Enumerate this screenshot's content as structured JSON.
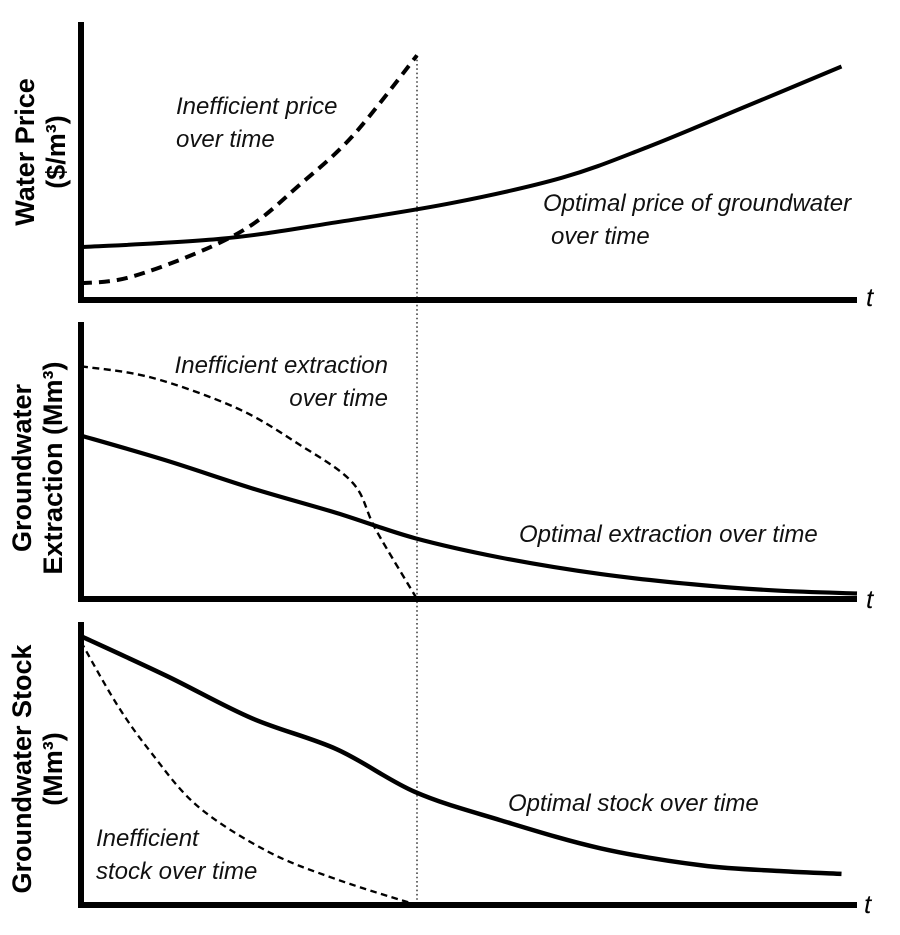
{
  "figure": {
    "background": "#ffffff",
    "ink_color": "#000000",
    "marker_line_color": "#3a3a3a"
  },
  "panels": [
    {
      "ylabel_line1": "Water Price",
      "ylabel_line2": "($/m³)",
      "xlabel": "t",
      "labels": {
        "inefficient_line1": "Inefficient price",
        "inefficient_line2": "over time",
        "optimal_line1": "Optimal price of groundwater",
        "optimal_line2": "over time"
      }
    },
    {
      "ylabel_line1": "Groundwater",
      "ylabel_line2": "Extraction (Mm³)",
      "xlabel": "t",
      "labels": {
        "inefficient_line1": "Inefficient extraction",
        "inefficient_line2": "over time",
        "optimal_line1": "Optimal extraction over time"
      }
    },
    {
      "ylabel_line1": "Groundwater Stock",
      "ylabel_line2": "(Mm³)",
      "xlabel": "t",
      "labels": {
        "inefficient_line1": "Inefficient",
        "inefficient_line2": "stock over time",
        "optimal_line1": "Optimal stock over time"
      }
    }
  ],
  "chart_data": [
    {
      "type": "line",
      "title": "Water price over time (qualitative sketch, no numeric ticks)",
      "xlabel": "t",
      "ylabel": "Water Price ($/m³)",
      "xlim": [
        0,
        1
      ],
      "ylim": [
        0,
        1
      ],
      "grid": false,
      "legend": "none (curves labeled inline)",
      "vertical_marker_x": 0.433,
      "series": [
        {
          "name": "Optimal price of groundwater over time",
          "line_style": "solid",
          "points": [
            [
              0.0,
              0.19
            ],
            [
              0.18,
              0.22
            ],
            [
              0.33,
              0.28
            ],
            [
              0.48,
              0.35
            ],
            [
              0.62,
              0.44
            ],
            [
              0.73,
              0.55
            ],
            [
              0.86,
              0.7
            ],
            [
              0.98,
              0.84
            ]
          ]
        },
        {
          "name": "Inefficient price over time",
          "line_style": "dashed",
          "points": [
            [
              0.0,
              0.06
            ],
            [
              0.06,
              0.08
            ],
            [
              0.15,
              0.17
            ],
            [
              0.22,
              0.27
            ],
            [
              0.28,
              0.41
            ],
            [
              0.35,
              0.59
            ],
            [
              0.433,
              0.88
            ]
          ]
        }
      ]
    },
    {
      "type": "line",
      "title": "Groundwater extraction over time (qualitative sketch, no numeric ticks)",
      "xlabel": "t",
      "ylabel": "Groundwater Extraction (Mm³)",
      "xlim": [
        0,
        1
      ],
      "ylim": [
        0,
        1
      ],
      "grid": false,
      "legend": "none (curves labeled inline)",
      "vertical_marker_x": 0.433,
      "series": [
        {
          "name": "Optimal extraction over time",
          "line_style": "solid",
          "points": [
            [
              0.0,
              0.59
            ],
            [
              0.11,
              0.5
            ],
            [
              0.22,
              0.4
            ],
            [
              0.33,
              0.31
            ],
            [
              0.43,
              0.22
            ],
            [
              0.54,
              0.15
            ],
            [
              0.67,
              0.09
            ],
            [
              0.8,
              0.05
            ],
            [
              0.9,
              0.03
            ],
            [
              1.0,
              0.02
            ]
          ]
        },
        {
          "name": "Inefficient extraction over time",
          "line_style": "dashed",
          "points": [
            [
              0.0,
              0.84
            ],
            [
              0.09,
              0.8
            ],
            [
              0.2,
              0.69
            ],
            [
              0.28,
              0.56
            ],
            [
              0.35,
              0.42
            ],
            [
              0.38,
              0.25
            ],
            [
              0.433,
              0.0
            ]
          ]
        }
      ]
    },
    {
      "type": "line",
      "title": "Groundwater stock over time (qualitative sketch, no numeric ticks)",
      "xlabel": "t",
      "ylabel": "Groundwater Stock (Mm³)",
      "xlim": [
        0,
        1
      ],
      "ylim": [
        0,
        1
      ],
      "grid": false,
      "legend": "none (curves labeled inline)",
      "vertical_marker_x": 0.433,
      "series": [
        {
          "name": "Optimal stock over time",
          "line_style": "solid",
          "points": [
            [
              0.0,
              0.95
            ],
            [
              0.11,
              0.81
            ],
            [
              0.22,
              0.66
            ],
            [
              0.33,
              0.55
            ],
            [
              0.43,
              0.4
            ],
            [
              0.54,
              0.3
            ],
            [
              0.67,
              0.2
            ],
            [
              0.8,
              0.14
            ],
            [
              0.9,
              0.12
            ],
            [
              0.98,
              0.11
            ]
          ]
        },
        {
          "name": "Inefficient stock over time",
          "line_style": "dashed",
          "points": [
            [
              0.0,
              0.93
            ],
            [
              0.046,
              0.71
            ],
            [
              0.09,
              0.54
            ],
            [
              0.15,
              0.35
            ],
            [
              0.24,
              0.19
            ],
            [
              0.33,
              0.09
            ],
            [
              0.433,
              0.0
            ]
          ]
        }
      ]
    }
  ]
}
